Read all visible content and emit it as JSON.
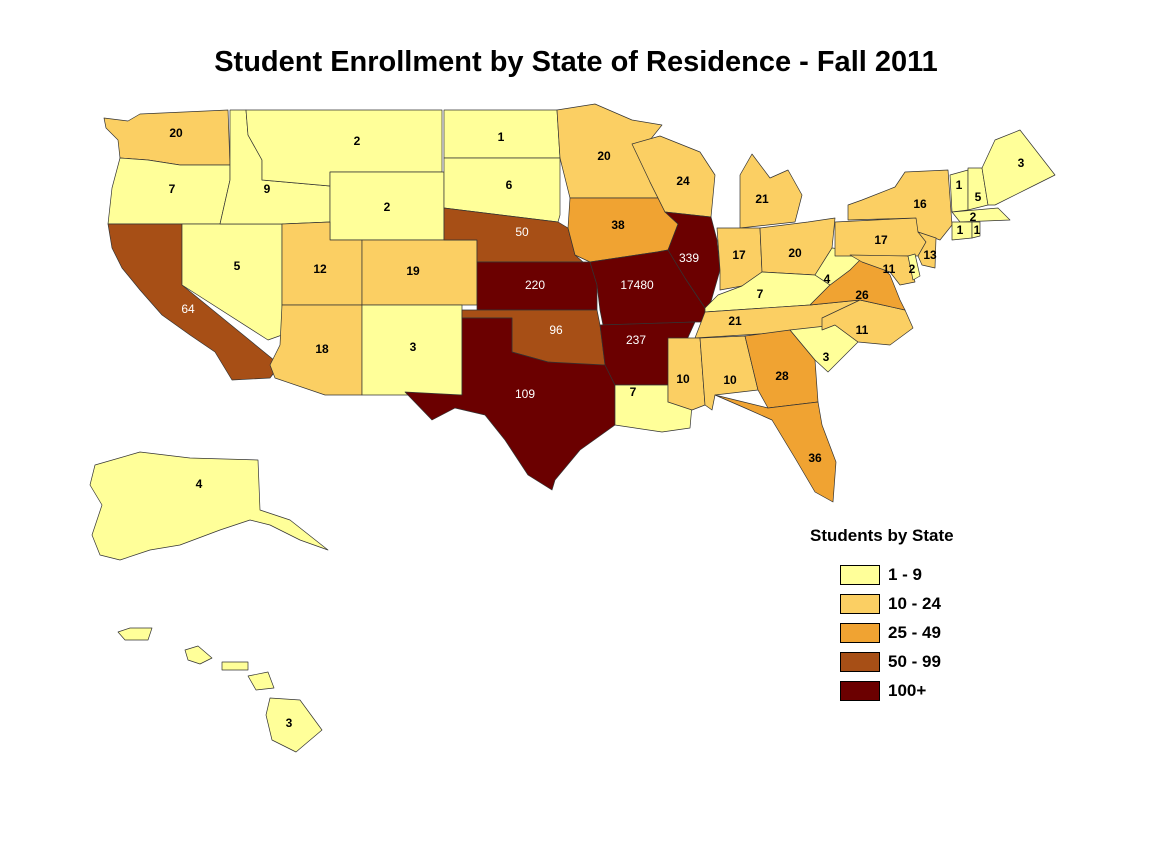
{
  "title": "Student Enrollment by State of Residence - Fall 2011",
  "legend": {
    "title": "Students by State",
    "classes": [
      {
        "label": "1 - 9",
        "color": "#FFFF99"
      },
      {
        "label": "10 - 24",
        "color": "#FBCF63"
      },
      {
        "label": "25 - 49",
        "color": "#F0A332"
      },
      {
        "label": "50 - 99",
        "color": "#A74F16"
      },
      {
        "label": "100+",
        "color": "#6B0000"
      }
    ]
  },
  "states": {
    "WA": {
      "value": "20",
      "class": 1
    },
    "OR": {
      "value": "7",
      "class": 0
    },
    "CA": {
      "value": "64",
      "class": 3
    },
    "NV": {
      "value": "5",
      "class": 0
    },
    "ID": {
      "value": "9",
      "class": 0
    },
    "MT": {
      "value": "2",
      "class": 0
    },
    "WY": {
      "value": "2",
      "class": 0
    },
    "UT": {
      "value": "12",
      "class": 1
    },
    "AZ": {
      "value": "18",
      "class": 1
    },
    "CO": {
      "value": "19",
      "class": 1
    },
    "NM": {
      "value": "3",
      "class": 0
    },
    "ND": {
      "value": "1",
      "class": 0
    },
    "SD": {
      "value": "6",
      "class": 0
    },
    "NE": {
      "value": "50",
      "class": 3
    },
    "KS": {
      "value": "220",
      "class": 4
    },
    "OK": {
      "value": "96",
      "class": 3
    },
    "TX": {
      "value": "109",
      "class": 4
    },
    "MN": {
      "value": "20",
      "class": 1
    },
    "IA": {
      "value": "38",
      "class": 2
    },
    "MO": {
      "value": "17480",
      "class": 4
    },
    "AR": {
      "value": "237",
      "class": 4
    },
    "LA": {
      "value": "7",
      "class": 0
    },
    "WI": {
      "value": "24",
      "class": 1
    },
    "IL": {
      "value": "339",
      "class": 4
    },
    "MI": {
      "value": "21",
      "class": 1
    },
    "IN": {
      "value": "17",
      "class": 1
    },
    "OH": {
      "value": "20",
      "class": 1
    },
    "KY": {
      "value": "7",
      "class": 0
    },
    "TN": {
      "value": "21",
      "class": 1
    },
    "MS": {
      "value": "10",
      "class": 1
    },
    "AL": {
      "value": "10",
      "class": 1
    },
    "GA": {
      "value": "28",
      "class": 2
    },
    "FL": {
      "value": "36",
      "class": 2
    },
    "SC": {
      "value": "3",
      "class": 0
    },
    "NC": {
      "value": "11",
      "class": 1
    },
    "VA": {
      "value": "26",
      "class": 2
    },
    "WV": {
      "value": "4",
      "class": 0
    },
    "PA": {
      "value": "17",
      "class": 1
    },
    "NY": {
      "value": "16",
      "class": 1
    },
    "NJ": {
      "value": "13",
      "class": 1
    },
    "MD": {
      "value": "11",
      "class": 1
    },
    "DE": {
      "value": "2",
      "class": 0
    },
    "VT": {
      "value": "1",
      "class": 0
    },
    "NH": {
      "value": "5",
      "class": 0
    },
    "ME": {
      "value": "3",
      "class": 0
    },
    "MA": {
      "value": "2",
      "class": 0
    },
    "CT": {
      "value": "1",
      "class": 0
    },
    "RI": {
      "value": "1",
      "class": 0
    },
    "AK": {
      "value": "4",
      "class": 0
    },
    "HI": {
      "value": "3",
      "class": 0
    }
  }
}
